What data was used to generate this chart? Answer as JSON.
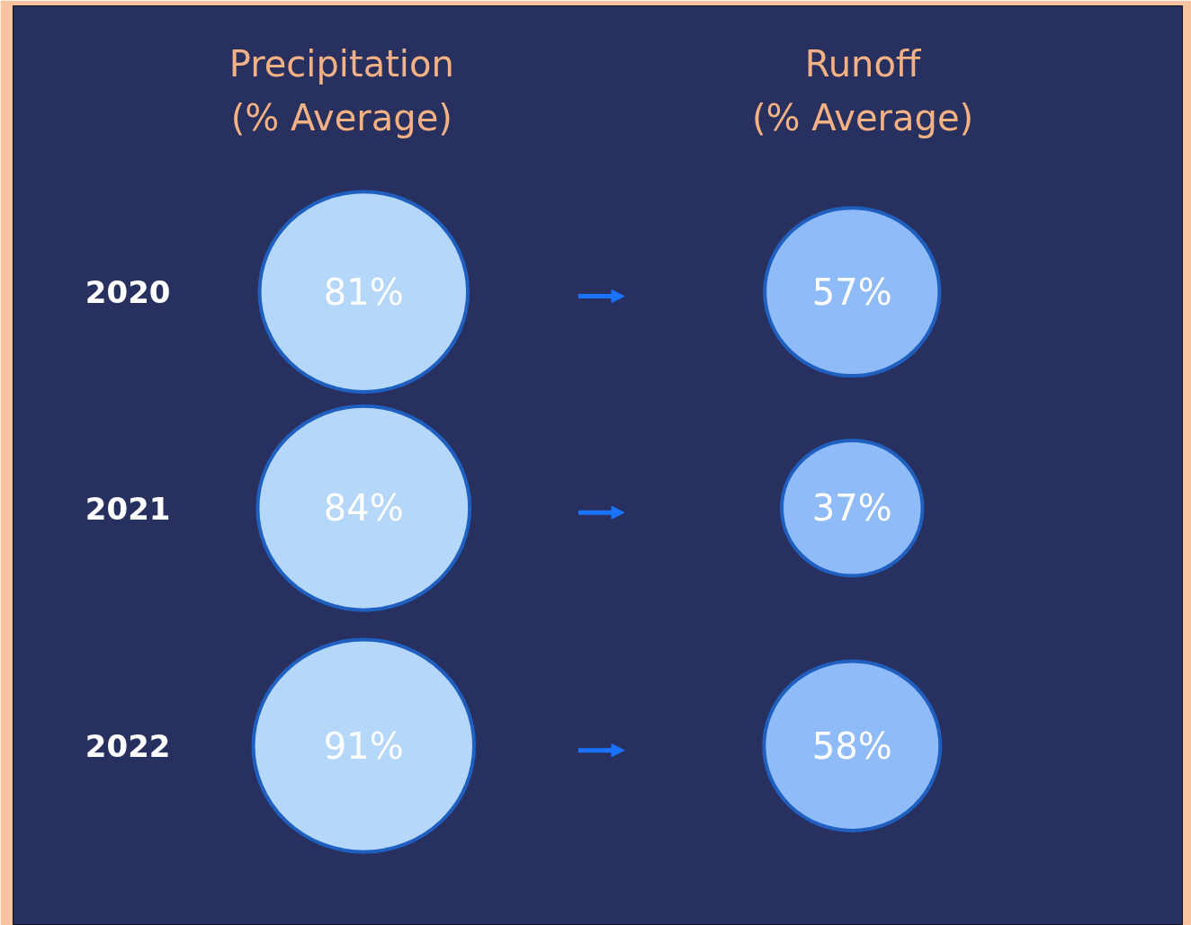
{
  "chart_data": {
    "type": "other",
    "categories": [
      "2020",
      "2021",
      "2022"
    ],
    "series": [
      {
        "name": "Precipitation\n(% Average)",
        "color": "#b4d7fa",
        "values": [
          81,
          84,
          91
        ],
        "value_labels": [
          "81%",
          "84%",
          "91%"
        ]
      },
      {
        "name": "Runoff\n(% Average)",
        "color": "#8fbcf8",
        "values": [
          57,
          37,
          58
        ],
        "value_labels": [
          "57%",
          "37%",
          "58%"
        ]
      }
    ]
  }
}
